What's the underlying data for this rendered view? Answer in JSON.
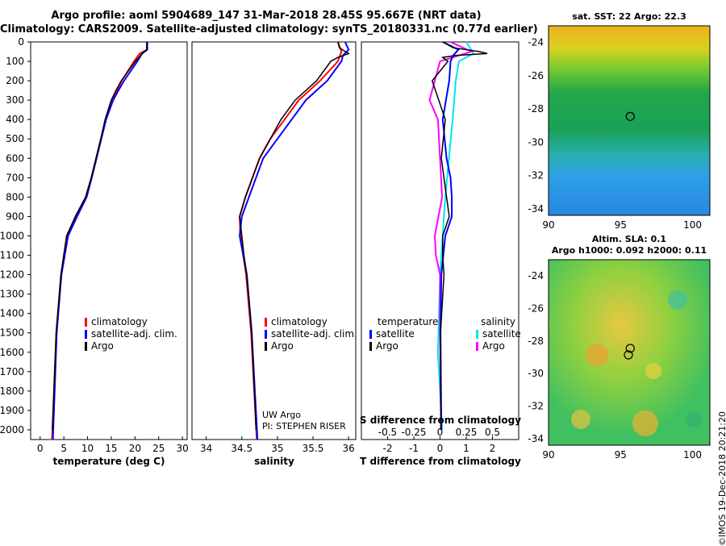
{
  "header": {
    "line1": "Argo profile: aoml 5904689_147 31-Mar-2018 28.45S 95.667E (NRT data)",
    "line2": "Climatology: CARS2009. Satellite-adjusted climatology: synTS_20180331.nc (0.77d earlier)"
  },
  "colors": {
    "climatology": "#ff0000",
    "satellite": "#0000ff",
    "argo": "#000000",
    "satellite_s": "#00e5ee",
    "argo_s": "#ff00ff"
  },
  "chart_data": [
    {
      "type": "line",
      "title": "",
      "xlabel": "temperature (deg C)",
      "ylabel": "depth",
      "xlim": [
        -2,
        31
      ],
      "ylim": [
        2050,
        0
      ],
      "xticks": [
        "0",
        "5",
        "10",
        "15",
        "20",
        "25",
        "30"
      ],
      "yticks": [
        "0",
        "100",
        "200",
        "300",
        "400",
        "500",
        "600",
        "700",
        "800",
        "900",
        "1000",
        "1100",
        "1200",
        "1300",
        "1400",
        "1500",
        "1600",
        "1700",
        "1800",
        "1900",
        "2000"
      ],
      "legend": [
        "climatology",
        "satellite-adj. clim.",
        "Argo"
      ],
      "series": [
        {
          "name": "climatology",
          "depth": [
            0,
            40,
            60,
            100,
            150,
            200,
            250,
            300,
            400,
            500,
            600,
            700,
            800,
            900,
            1000,
            1200,
            1500,
            2050
          ],
          "values": [
            22.5,
            22.5,
            21,
            19.8,
            18.5,
            17.2,
            16.2,
            15.2,
            13.8,
            12.8,
            11.8,
            10.8,
            9.6,
            7.5,
            5.6,
            4.4,
            3.4,
            2.5
          ]
        },
        {
          "name": "satellite-adj. clim.",
          "depth": [
            0,
            40,
            60,
            100,
            150,
            200,
            250,
            300,
            400,
            500,
            600,
            700,
            800,
            900,
            1000,
            1200,
            1500,
            2050
          ],
          "values": [
            22.6,
            22.6,
            21.5,
            20.5,
            19.1,
            17.7,
            16.5,
            15.4,
            13.9,
            12.9,
            11.9,
            10.9,
            9.8,
            7.8,
            5.9,
            4.5,
            3.5,
            2.7
          ]
        },
        {
          "name": "Argo",
          "depth": [
            0,
            40,
            60,
            100,
            150,
            200,
            250,
            300,
            400,
            500,
            600,
            700,
            800,
            900,
            1000,
            1200,
            1500,
            2000
          ],
          "values": [
            22.5,
            22.5,
            21.5,
            20.1,
            18.6,
            17.1,
            16.0,
            15.0,
            13.7,
            12.8,
            11.8,
            10.8,
            9.6,
            7.4,
            5.6,
            4.4,
            3.4,
            2.6
          ]
        }
      ]
    },
    {
      "type": "line",
      "xlabel": "salinity",
      "xlim": [
        33.8,
        36.1
      ],
      "ylim": [
        2050,
        0
      ],
      "xticks": [
        "34",
        "34.5",
        "35",
        "35.5",
        "36"
      ],
      "legend": [
        "climatology",
        "satellite-adj. clim.",
        "Argo"
      ],
      "annotation": [
        "UW Argo",
        "PI: STEPHEN RISER"
      ],
      "series": [
        {
          "name": "climatology",
          "depth": [
            0,
            50,
            100,
            200,
            300,
            400,
            500,
            600,
            700,
            800,
            900,
            1000,
            1100,
            1200,
            1500,
            2050
          ],
          "values": [
            35.85,
            35.9,
            35.85,
            35.6,
            35.3,
            35.1,
            34.9,
            34.75,
            34.65,
            34.55,
            34.47,
            34.48,
            34.52,
            34.56,
            34.63,
            34.71
          ]
        },
        {
          "name": "satellite-adj. clim.",
          "depth": [
            0,
            40,
            70,
            100,
            200,
            300,
            400,
            500,
            600,
            700,
            800,
            900,
            1000,
            1100,
            1200,
            1500,
            2050
          ],
          "values": [
            35.95,
            36.0,
            35.92,
            35.9,
            35.7,
            35.4,
            35.2,
            35.0,
            34.8,
            34.7,
            34.6,
            34.5,
            34.47,
            34.52,
            34.57,
            34.64,
            34.72
          ]
        },
        {
          "name": "Argo",
          "depth": [
            0,
            30,
            60,
            80,
            100,
            200,
            300,
            400,
            500,
            600,
            700,
            800,
            900,
            1000,
            1100,
            1200,
            1500,
            2000
          ],
          "values": [
            35.85,
            35.87,
            36.0,
            35.85,
            35.75,
            35.55,
            35.25,
            35.05,
            34.9,
            34.75,
            34.65,
            34.55,
            34.47,
            34.5,
            34.53,
            34.57,
            34.64,
            34.7
          ]
        }
      ]
    },
    {
      "type": "line",
      "xlabel": "T difference from climatology",
      "xlabel2": "S difference from climatology",
      "xlim": [
        -3,
        3
      ],
      "ylim": [
        2050,
        0
      ],
      "xticks": [
        "-2",
        "-1",
        "0",
        "1",
        "2"
      ],
      "xticks2": [
        "-0.5",
        "-0.25",
        "0",
        "0.25",
        "0.5"
      ],
      "legend_t_title": "temperature",
      "legend_s_title": "salinity",
      "legend_t": [
        "satellite",
        "Argo"
      ],
      "legend_s": [
        "satellite",
        "Argo"
      ],
      "series": [
        {
          "name": "T satellite",
          "depth": [
            0,
            40,
            70,
            100,
            200,
            400,
            600,
            700,
            800,
            900,
            1000,
            1200,
            1500,
            2000
          ],
          "values": [
            0.1,
            0.7,
            0.5,
            0.4,
            0.35,
            0.1,
            0.25,
            0.4,
            0.45,
            0.45,
            0.2,
            0.05,
            0.02,
            0.05
          ]
        },
        {
          "name": "T Argo",
          "depth": [
            0,
            30,
            50,
            60,
            70,
            80,
            100,
            200,
            400,
            600,
            800,
            900,
            1000,
            1100,
            1200,
            1500,
            2000
          ],
          "values": [
            0.1,
            0.5,
            1.5,
            1.8,
            0.6,
            0.1,
            0.3,
            -0.3,
            0.2,
            0.05,
            0.25,
            0.35,
            0.1,
            0.1,
            0.15,
            0.02,
            0.03
          ]
        },
        {
          "name": "S satellite",
          "depth": [
            0,
            60,
            100,
            200,
            400,
            800,
            1200,
            1600,
            2000
          ],
          "values": [
            0.25,
            0.32,
            0.18,
            0.15,
            0.12,
            0.05,
            0.0,
            -0.02,
            0.02
          ]
        },
        {
          "name": "S Argo",
          "depth": [
            0,
            50,
            100,
            200,
            300,
            400,
            600,
            800,
            1000,
            1100,
            1200,
            1500,
            2000
          ],
          "values": [
            0.1,
            0.3,
            0.0,
            -0.05,
            -0.1,
            -0.02,
            0.0,
            0.02,
            -0.05,
            -0.04,
            0.0,
            0.0,
            0.01
          ]
        }
      ]
    },
    {
      "type": "heatmap",
      "title": "sat. SST: 22 Argo: 22.3",
      "xticks": [
        "90",
        "95",
        "100"
      ],
      "yticks": [
        "-24",
        "-26",
        "-28",
        "-30",
        "-32",
        "-34"
      ],
      "marker": [
        95.67,
        -28.45
      ]
    },
    {
      "type": "heatmap",
      "title": "Altim. SLA: 0.1",
      "subtitle": "Argo h1000: 0.092 h2000: 0.11",
      "xticks": [
        "90",
        "95",
        "100"
      ],
      "yticks": [
        "-24",
        "-26",
        "-28",
        "-30",
        "-32",
        "-34"
      ],
      "marker": [
        95.67,
        -28.45
      ]
    }
  ],
  "stamp": "©IMOS 19-Dec-2018 20:21:20"
}
